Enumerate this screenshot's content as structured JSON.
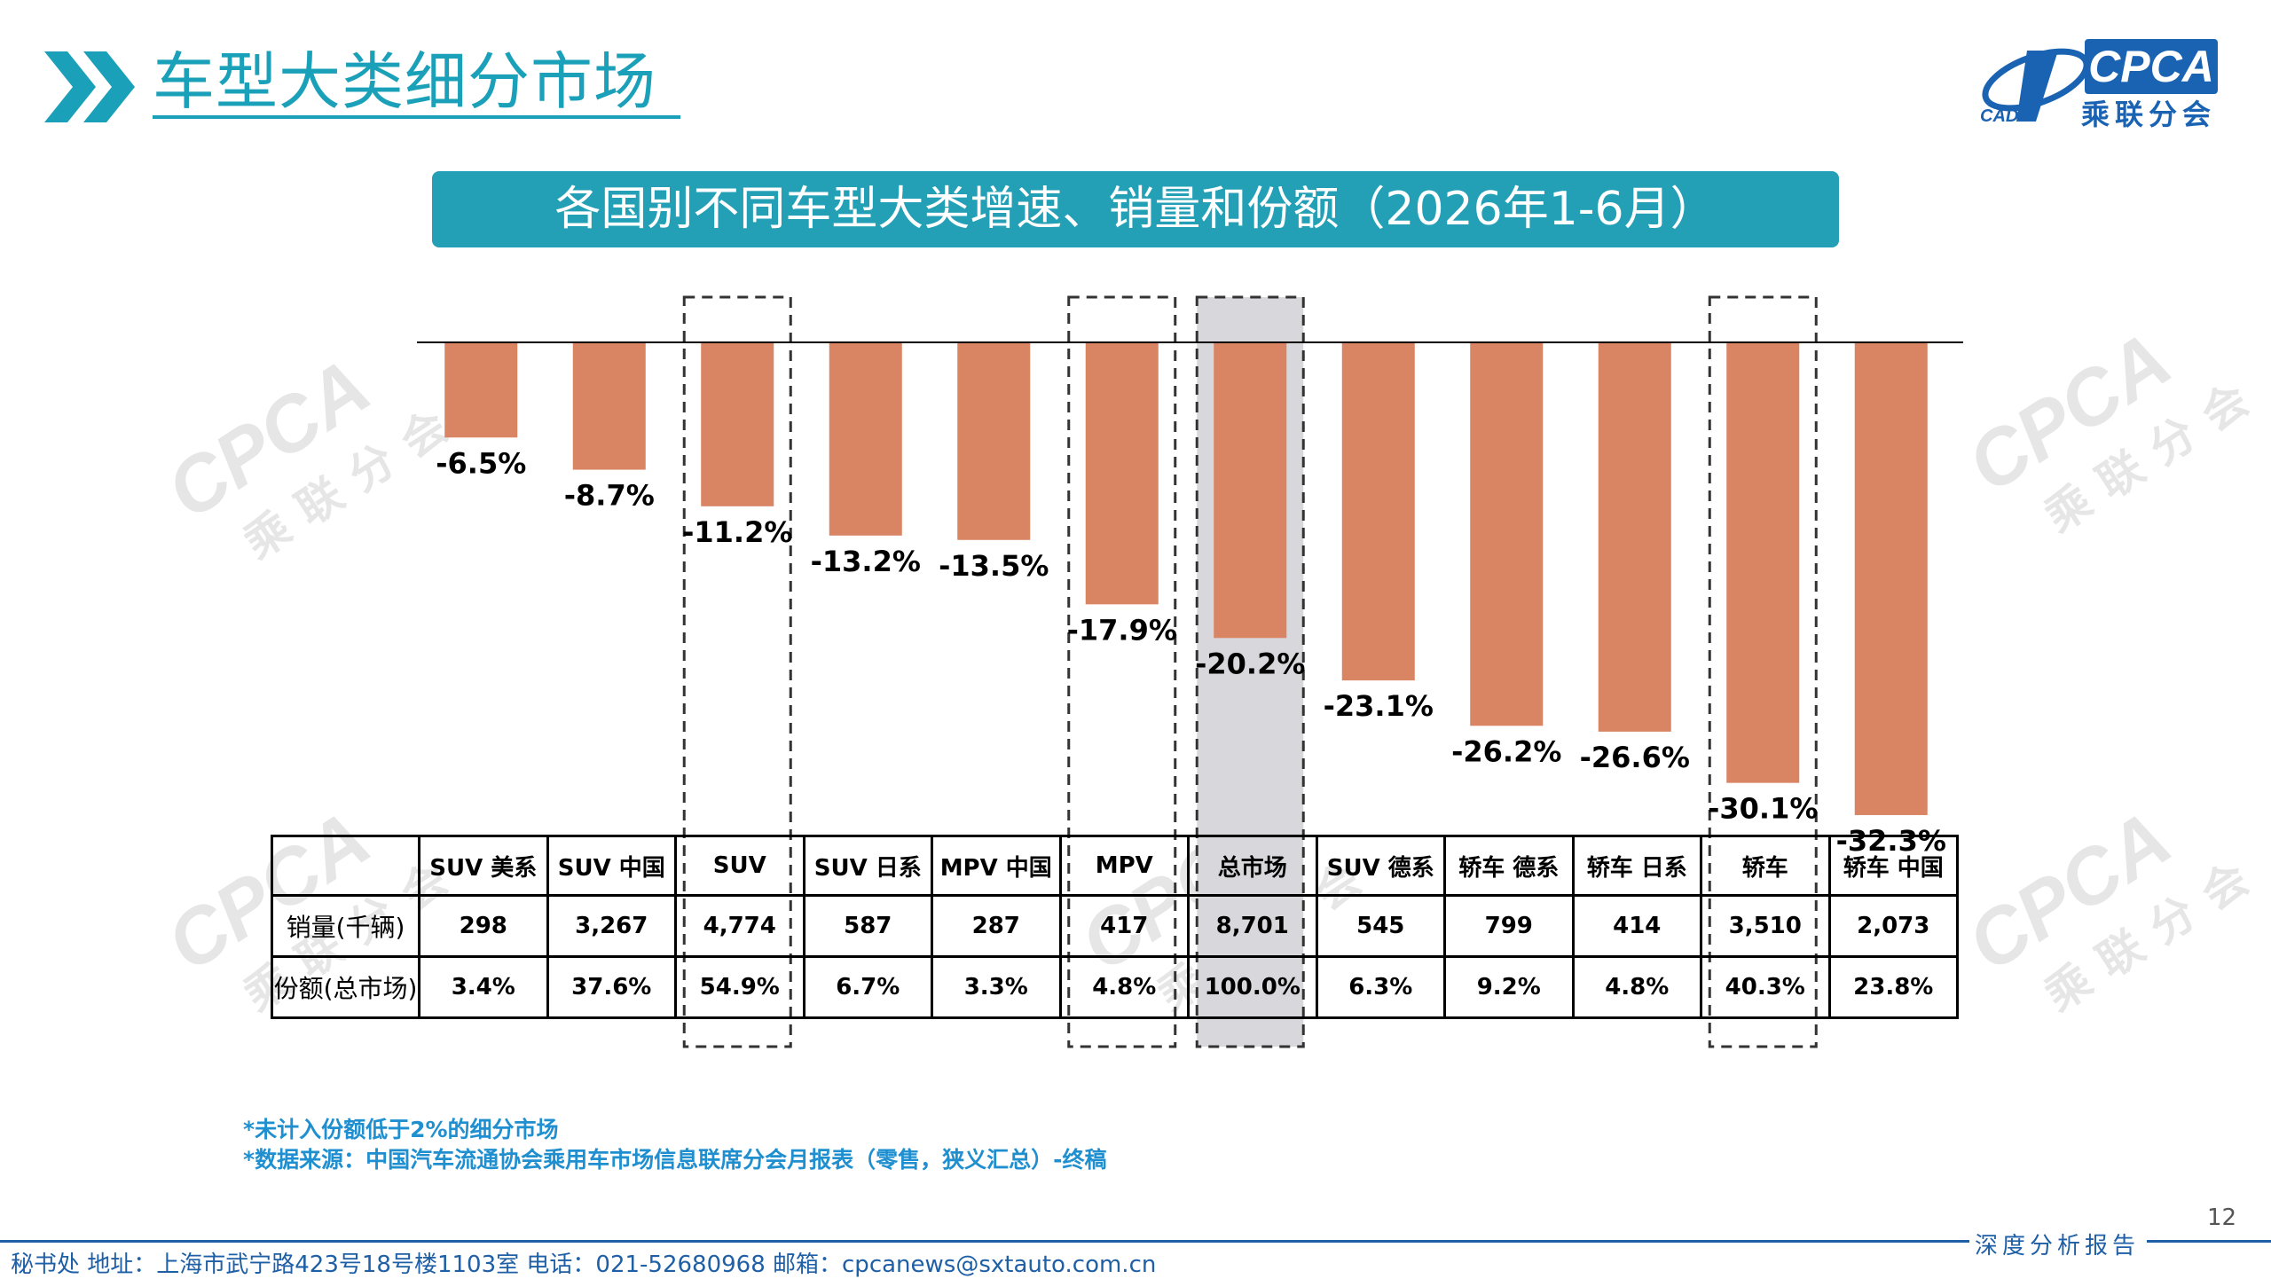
{
  "header": {
    "title": "车型大类细分市场",
    "logo_en": "CPCA",
    "logo_cn": "乘联分会",
    "logo_sub": "CADA"
  },
  "chart_banner": "各国别不同车型大类增速、销量和份额（2026年1-6月）",
  "chart_data": {
    "type": "bar",
    "categories": [
      "SUV 美系",
      "SUV 中国",
      "SUV",
      "SUV 日系",
      "MPV 中国",
      "MPV",
      "总市场",
      "SUV 德系",
      "轿车 德系",
      "轿车 日系",
      "轿车",
      "轿车 中国"
    ],
    "value_labels": [
      "-6.5%",
      "-8.7%",
      "-11.2%",
      "-13.2%",
      "-13.5%",
      "-17.9%",
      "-20.2%",
      "-23.1%",
      "-26.2%",
      "-26.6%",
      "-30.1%",
      "-32.3%"
    ],
    "series": [
      {
        "values": [
          -6.5,
          -8.7,
          -11.2,
          -13.2,
          -13.5,
          -17.9,
          -20.2,
          -23.1,
          -26.2,
          -26.6,
          -30.1,
          -32.3
        ]
      }
    ],
    "ylim": [
      -35,
      0
    ],
    "bar_color": "#d98463",
    "highlight_dashed": [
      "SUV",
      "MPV",
      "轿车"
    ],
    "highlight_filled": [
      "总市场"
    ],
    "highlight_fill_color": "#d7d7dc"
  },
  "table": {
    "rows": [
      {
        "label": "销量(千辆)",
        "values": [
          "298",
          "3,267",
          "4,774",
          "587",
          "287",
          "417",
          "8,701",
          "545",
          "799",
          "414",
          "3,510",
          "2,073"
        ]
      },
      {
        "label": "份额(总市场)",
        "values": [
          "3.4%",
          "37.6%",
          "54.9%",
          "6.7%",
          "3.3%",
          "4.8%",
          "100.0%",
          "6.3%",
          "9.2%",
          "4.8%",
          "40.3%",
          "23.8%"
        ]
      }
    ]
  },
  "notes": [
    "*未计入份额低于2%的细分市场",
    "*数据来源：中国汽车流通协会乘用车市场信息联席分会月报表（零售，狭义汇总）-终稿"
  ],
  "footer": {
    "page_number": "12",
    "right_label": "深度分析报告",
    "contact": "秘书处   地址：上海市武宁路423号18号楼1103室  电话：021-52680968   邮箱：cpcanews@sxtauto.com.cn"
  }
}
